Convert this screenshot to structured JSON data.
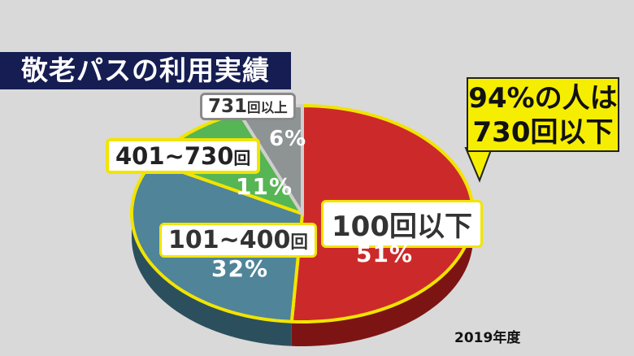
{
  "title": "敬老パスの利用実績",
  "year": "2019年度",
  "callout": {
    "line1": "94%の人は",
    "line2": "730回以下"
  },
  "chart_data": {
    "type": "pie",
    "title": "敬老パスの利用実績",
    "slices": [
      {
        "key": "s100",
        "label_main": "100",
        "label_unit": "回以下",
        "value": 51,
        "display": "51%",
        "color": "#cc2a2a",
        "side_color": "#7d1414"
      },
      {
        "key": "s101",
        "label_main": "101~400",
        "label_unit": "回",
        "value": 32,
        "display": "32%",
        "color": "#4f8499",
        "side_color": "#2b4f5d"
      },
      {
        "key": "s401",
        "label_main": "401~730",
        "label_unit": "回",
        "value": 11,
        "display": "11%",
        "color": "#56b554",
        "side_color": "#2f6a2d"
      },
      {
        "key": "s731",
        "label_main": "731",
        "label_unit": "回以上",
        "value": 6,
        "display": "6%",
        "color": "#8e9393",
        "side_color": "#565a5a"
      }
    ],
    "highlight_color": "#f2e400",
    "annotation": "94%の人は730回以下",
    "note": "2019年度"
  }
}
